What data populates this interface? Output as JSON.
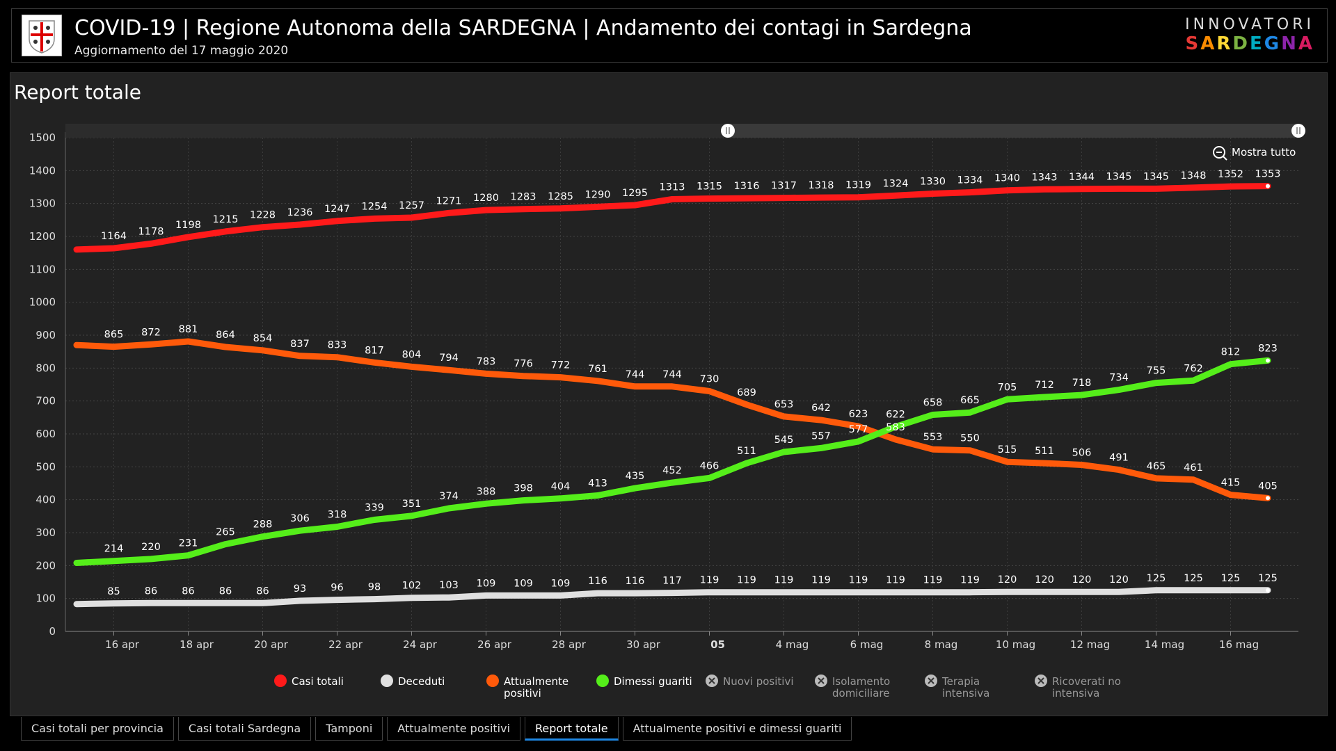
{
  "header": {
    "title": "COVID-19 | Regione Autonoma della SARDEGNA | Andamento dei contagi in Sardegna",
    "subtitle": "Aggiornamento del 17 maggio 2020",
    "brand_top": "INNOVATORI",
    "brand_bottom": "SARDEGNA"
  },
  "panel": {
    "title": "Report totale",
    "zoom_label": "Mostra tutto"
  },
  "legend": [
    {
      "label": "Casi totali",
      "color": "#ff1a1a",
      "active": true
    },
    {
      "label": "Deceduti",
      "color": "#e0e0e0",
      "active": true
    },
    {
      "label": "Attualmente positivi",
      "color": "#ff5a0a",
      "active": true
    },
    {
      "label": "Dimessi guariti",
      "color": "#55ee1a",
      "active": true
    },
    {
      "label": "Nuovi positivi",
      "color": "#aaaaaa",
      "active": false
    },
    {
      "label": "Isolamento domiciliare",
      "color": "#aaaaaa",
      "active": false
    },
    {
      "label": "Terapia intensiva",
      "color": "#aaaaaa",
      "active": false
    },
    {
      "label": "Ricoverati no intensiva",
      "color": "#aaaaaa",
      "active": false
    }
  ],
  "tabs": [
    {
      "label": "Casi totali per provincia",
      "active": false
    },
    {
      "label": "Casi totali Sardegna",
      "active": false
    },
    {
      "label": "Tamponi",
      "active": false
    },
    {
      "label": "Attualmente positivi",
      "active": false
    },
    {
      "label": "Report totale",
      "active": true
    },
    {
      "label": "Attualmente positivi e dimessi guariti",
      "active": false
    }
  ],
  "chart_data": {
    "type": "line",
    "title": "Report totale",
    "x": [
      "15 apr",
      "16 apr",
      "17 apr",
      "18 apr",
      "19 apr",
      "20 apr",
      "21 apr",
      "22 apr",
      "23 apr",
      "24 apr",
      "25 apr",
      "26 apr",
      "27 apr",
      "28 apr",
      "29 apr",
      "30 apr",
      "1 mag",
      "2 mag",
      "3 mag",
      "4 mag",
      "5 mag",
      "6 mag",
      "7 mag",
      "8 mag",
      "9 mag",
      "10 mag",
      "11 mag",
      "12 mag",
      "13 mag",
      "14 mag",
      "15 mag",
      "16 mag",
      "17 mag"
    ],
    "x_tick_labels": [
      "16 apr",
      "18 apr",
      "20 apr",
      "22 apr",
      "24 apr",
      "26 apr",
      "28 apr",
      "30 apr",
      "05",
      "4 mag",
      "6 mag",
      "8 mag",
      "10 mag",
      "12 mag",
      "14 mag",
      "16 mag"
    ],
    "ylim": [
      0,
      1500
    ],
    "y_ticks": [
      0,
      100,
      200,
      300,
      400,
      500,
      600,
      700,
      800,
      900,
      1000,
      1100,
      1200,
      1300,
      1400,
      1500
    ],
    "grid": true,
    "legend_position": "bottom",
    "series": [
      {
        "name": "Casi totali",
        "color": "#ff1a1a",
        "values": [
          1160,
          1164,
          1178,
          1198,
          1215,
          1228,
          1236,
          1247,
          1254,
          1257,
          1271,
          1280,
          1283,
          1285,
          1290,
          1295,
          1313,
          1315,
          1316,
          1317,
          1318,
          1319,
          1324,
          1330,
          1334,
          1340,
          1343,
          1344,
          1345,
          1345,
          1348,
          1352,
          1353
        ]
      },
      {
        "name": "Deceduti",
        "color": "#e0e0e0",
        "values": [
          83,
          85,
          86,
          86,
          86,
          86,
          93,
          96,
          98,
          102,
          103,
          109,
          109,
          109,
          116,
          116,
          117,
          119,
          119,
          119,
          119,
          119,
          119,
          119,
          119,
          120,
          120,
          120,
          120,
          125,
          125,
          125,
          125
        ]
      },
      {
        "name": "Attualmente positivi",
        "color": "#ff5a0a",
        "values": [
          870,
          865,
          872,
          881,
          864,
          854,
          837,
          833,
          817,
          804,
          794,
          783,
          776,
          772,
          761,
          744,
          744,
          730,
          689,
          653,
          642,
          623,
          583,
          553,
          550,
          515,
          511,
          506,
          491,
          465,
          461,
          415,
          405
        ]
      },
      {
        "name": "Dimessi guariti",
        "color": "#55ee1a",
        "values": [
          208,
          214,
          220,
          231,
          265,
          288,
          306,
          318,
          339,
          351,
          374,
          388,
          398,
          404,
          413,
          435,
          452,
          466,
          511,
          545,
          557,
          577,
          622,
          658,
          665,
          705,
          712,
          718,
          734,
          755,
          762,
          812,
          823
        ]
      }
    ]
  }
}
